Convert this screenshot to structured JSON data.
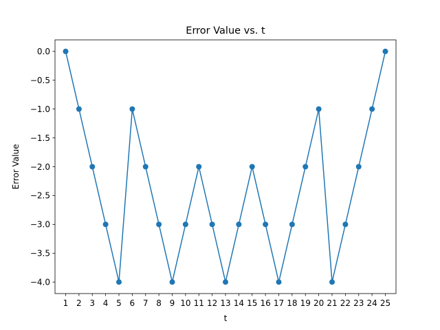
{
  "chart_data": {
    "type": "line",
    "title": "Error Value vs. t",
    "xlabel": "t",
    "ylabel": "Error Value",
    "x": [
      1,
      2,
      3,
      4,
      5,
      6,
      7,
      8,
      9,
      10,
      11,
      12,
      13,
      14,
      15,
      16,
      17,
      18,
      19,
      20,
      21,
      22,
      23,
      24,
      25
    ],
    "series": [
      {
        "values": [
          0,
          -1,
          -2,
          -3,
          -4,
          -1,
          -2,
          -3,
          -4,
          -3,
          -2,
          -3,
          -4,
          -3,
          -2,
          -3,
          -4,
          -3,
          -2,
          -1,
          -4,
          -3,
          -2,
          -1,
          0
        ],
        "color": "#1f77b4",
        "marker": "circle"
      }
    ],
    "xlim": [
      0.2,
      25.8
    ],
    "ylim": [
      -4.2,
      0.2
    ],
    "xticks": [
      "1",
      "2",
      "3",
      "4",
      "5",
      "6",
      "7",
      "8",
      "9",
      "10",
      "11",
      "12",
      "13",
      "14",
      "15",
      "16",
      "17",
      "18",
      "19",
      "20",
      "21",
      "22",
      "23",
      "24",
      "25"
    ],
    "yticks": [
      {
        "value": 0.0,
        "label": "0.0"
      },
      {
        "value": -0.5,
        "label": "−0.5"
      },
      {
        "value": -1.0,
        "label": "−1.0"
      },
      {
        "value": -1.5,
        "label": "−1.5"
      },
      {
        "value": -2.0,
        "label": "−2.0"
      },
      {
        "value": -2.5,
        "label": "−2.5"
      },
      {
        "value": -3.0,
        "label": "−3.0"
      },
      {
        "value": -3.5,
        "label": "−3.5"
      },
      {
        "value": -4.0,
        "label": "−4.0"
      }
    ],
    "grid": false,
    "legend": "none"
  }
}
